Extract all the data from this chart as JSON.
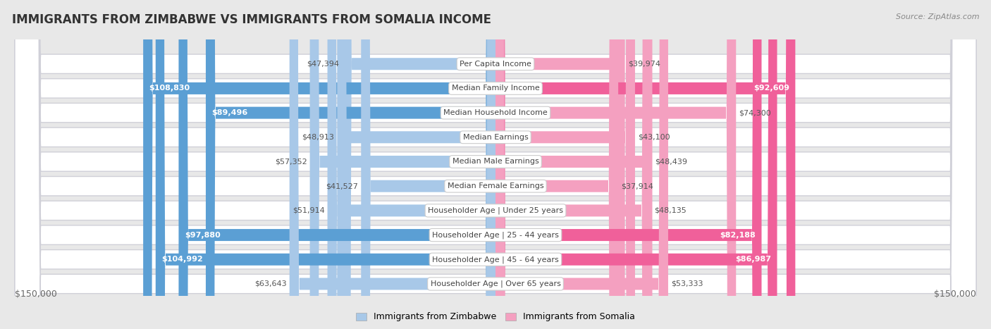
{
  "title": "IMMIGRANTS FROM ZIMBABWE VS IMMIGRANTS FROM SOMALIA INCOME",
  "source": "Source: ZipAtlas.com",
  "categories": [
    "Per Capita Income",
    "Median Family Income",
    "Median Household Income",
    "Median Earnings",
    "Median Male Earnings",
    "Median Female Earnings",
    "Householder Age | Under 25 years",
    "Householder Age | 25 - 44 years",
    "Householder Age | 45 - 64 years",
    "Householder Age | Over 65 years"
  ],
  "zimbabwe_values": [
    47394,
    108830,
    89496,
    48913,
    57352,
    41527,
    51914,
    97880,
    104992,
    63643
  ],
  "somalia_values": [
    39974,
    92609,
    74300,
    43100,
    48439,
    37914,
    48135,
    82188,
    86987,
    53333
  ],
  "zimbabwe_color_light": "#a8c8e8",
  "zimbabwe_color_dark": "#5b9fd4",
  "somalia_color_light": "#f4a0c0",
  "somalia_color_dark": "#f0609a",
  "background_color": "#e8e8e8",
  "row_bg": "#ffffff",
  "row_border": "#d0d0d8",
  "max_value": 150000,
  "xlabel_left": "$150,000",
  "xlabel_right": "$150,000",
  "legend_zimbabwe": "Immigrants from Zimbabwe",
  "legend_somalia": "Immigrants from Somalia",
  "title_fontsize": 12,
  "value_fontsize": 8,
  "cat_fontsize": 8,
  "tick_fontsize": 9,
  "zim_dark_threshold": 85000,
  "som_dark_threshold": 75000
}
